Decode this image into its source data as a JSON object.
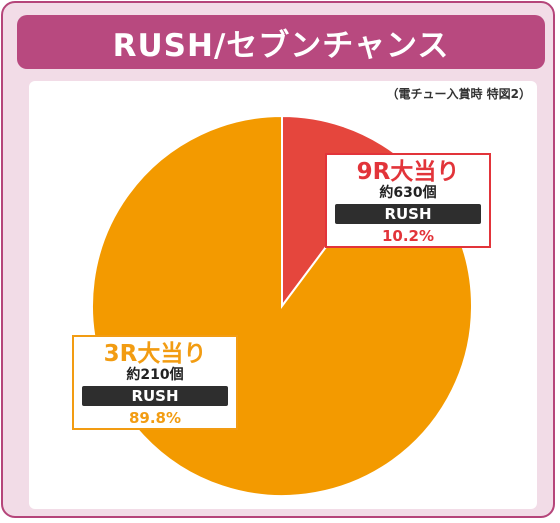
{
  "title": "RUSH/セブンチャンス",
  "note": "（電チュー入賞時 特図2）",
  "colors": {
    "frame": "#b8497f",
    "slice_red": "#e5463d",
    "slice_orange": "#f39a00",
    "edge": "#ffffff"
  },
  "chart_data": {
    "type": "pie",
    "title": "RUSH/セブンチャンス",
    "slices": [
      {
        "label": "9R大当り",
        "payout": "約630個",
        "mode": "RUSH",
        "value": 10.2,
        "value_label": "10.2%"
      },
      {
        "label": "3R大当り",
        "payout": "約210個",
        "mode": "RUSH",
        "value": 89.8,
        "value_label": "89.8%"
      }
    ]
  }
}
